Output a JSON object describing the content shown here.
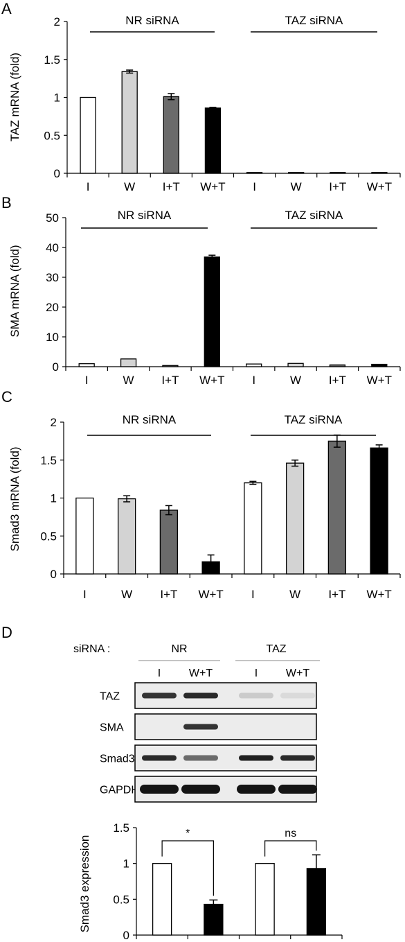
{
  "figure": {
    "blot": {
      "header_label": "siRNA :",
      "groups": [
        "NR",
        "TAZ"
      ],
      "lanes": [
        "I",
        "W+T",
        "I",
        "W+T"
      ],
      "rows": [
        "TAZ",
        "SMA",
        "Smad3",
        "GAPDH"
      ],
      "band_intensity": {
        "TAZ": [
          0.85,
          0.9,
          0.15,
          0.08
        ],
        "SMA": [
          0.0,
          0.85,
          0.0,
          0.0
        ],
        "Smad3": [
          0.9,
          0.6,
          0.95,
          0.9
        ],
        "GAPDH": [
          1.0,
          1.0,
          1.0,
          1.0
        ]
      }
    }
  },
  "chart_data": [
    {
      "id": "A",
      "panel_label": "A",
      "type": "bar",
      "ylabel": "TAZ mRNA (fold)",
      "xlabel": "",
      "ylim": [
        0,
        2
      ],
      "yticks": [
        "0",
        "0.5",
        "1",
        "1.5",
        "2"
      ],
      "categories": [
        "I",
        "W",
        "I+T",
        "W+T",
        "I",
        "W",
        "I+T",
        "W+T"
      ],
      "groups": [
        {
          "label": "NR siRNA",
          "span": [
            0,
            3
          ]
        },
        {
          "label": "TAZ siRNA",
          "span": [
            4,
            7
          ]
        }
      ],
      "values": [
        1.0,
        1.34,
        1.01,
        0.86,
        0.01,
        0.01,
        0.005,
        0.01
      ],
      "errors": [
        0,
        0.02,
        0.04,
        0.01,
        0,
        0,
        0,
        0
      ],
      "colors": [
        "#ffffff",
        "#d3d3d3",
        "#6b6b6b",
        "#000000",
        "#ffffff",
        "#d3d3d3",
        "#6b6b6b",
        "#000000"
      ]
    },
    {
      "id": "B",
      "panel_label": "B",
      "type": "bar",
      "ylabel": "SMA mRNA (fold)",
      "xlabel": "",
      "ylim": [
        0,
        50
      ],
      "yticks": [
        "0",
        "10",
        "20",
        "30",
        "40",
        "50"
      ],
      "categories": [
        "I",
        "W",
        "I+T",
        "W+T",
        "I",
        "W",
        "I+T",
        "W+T"
      ],
      "groups": [
        {
          "label": "NR siRNA",
          "span": [
            0,
            3
          ]
        },
        {
          "label": "TAZ siRNA",
          "span": [
            4,
            7
          ]
        }
      ],
      "values": [
        1.0,
        2.6,
        0.4,
        36.8,
        0.9,
        1.1,
        0.6,
        0.8
      ],
      "errors": [
        0,
        0,
        0,
        0.6,
        0,
        0,
        0,
        0
      ],
      "colors": [
        "#ffffff",
        "#d3d3d3",
        "#6b6b6b",
        "#000000",
        "#ffffff",
        "#d3d3d3",
        "#6b6b6b",
        "#000000"
      ]
    },
    {
      "id": "C",
      "panel_label": "C",
      "type": "bar",
      "ylabel": "Smad3 mRNA (fold)",
      "xlabel": "",
      "ylim": [
        0,
        2
      ],
      "yticks": [
        "0",
        "0.5",
        "1",
        "1.5",
        "2"
      ],
      "categories": [
        "I",
        "W",
        "I+T",
        "W+T",
        "I",
        "W",
        "I+T",
        "W+T"
      ],
      "groups": [
        {
          "label": "NR siRNA",
          "span": [
            0,
            3
          ]
        },
        {
          "label": "TAZ siRNA",
          "span": [
            4,
            7
          ]
        }
      ],
      "values": [
        1.0,
        0.99,
        0.84,
        0.16,
        1.2,
        1.46,
        1.75,
        1.66
      ],
      "errors": [
        0,
        0.04,
        0.06,
        0.09,
        0.02,
        0.04,
        0.08,
        0.04
      ],
      "colors": [
        "#ffffff",
        "#d3d3d3",
        "#6b6b6b",
        "#000000",
        "#ffffff",
        "#d3d3d3",
        "#6b6b6b",
        "#000000"
      ]
    },
    {
      "id": "D",
      "panel_label": "D",
      "type": "bar",
      "ylabel": "Smad3 expression",
      "xlabel": "",
      "ylim": [
        0,
        1.5
      ],
      "yticks": [
        "0",
        "0.5",
        "1",
        "1.5"
      ],
      "categories": [
        "",
        "",
        "",
        ""
      ],
      "values": [
        1.0,
        0.43,
        1.0,
        0.93
      ],
      "errors": [
        0,
        0.06,
        0,
        0.19
      ],
      "colors": [
        "#ffffff",
        "#000000",
        "#ffffff",
        "#000000"
      ],
      "significance": [
        "*",
        "ns"
      ]
    }
  ]
}
